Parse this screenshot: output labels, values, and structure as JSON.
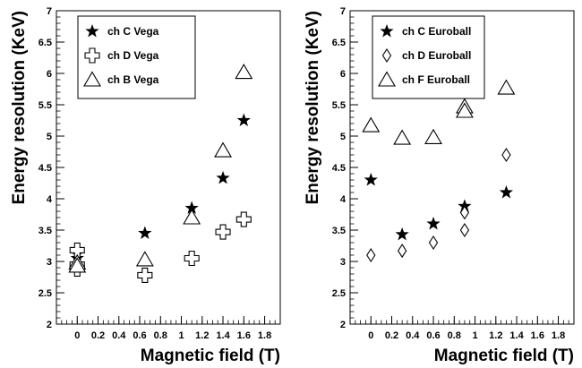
{
  "chart_data": [
    {
      "type": "scatter",
      "xlabel": "Magnetic field (T)",
      "ylabel": "Energy resolution (KeV)",
      "xlim": [
        -0.2,
        1.95
      ],
      "ylim": [
        2,
        7
      ],
      "xticks": [
        "0",
        "0.2",
        "0.4",
        "0.6",
        "0.8",
        "1",
        "1.2",
        "1.4",
        "1.6",
        "1.8"
      ],
      "yticks": [
        "2",
        "2.5",
        "3",
        "3.5",
        "4",
        "4.5",
        "5",
        "5.5",
        "6",
        "6.5",
        "7"
      ],
      "legend_position": "top-left",
      "series": [
        {
          "name": "ch C Vega",
          "marker": "star",
          "x": [
            0,
            0,
            0.65,
            1.1,
            1.4,
            1.6
          ],
          "y": [
            3.12,
            3.05,
            3.45,
            3.85,
            4.33,
            5.25
          ]
        },
        {
          "name": "ch D Vega",
          "marker": "cross",
          "x": [
            0,
            0,
            0,
            0.65,
            1.1,
            1.4,
            1.6
          ],
          "y": [
            3.18,
            2.95,
            2.88,
            2.78,
            3.05,
            3.47,
            3.67
          ]
        },
        {
          "name": "ch B Vega",
          "marker": "triangle",
          "x": [
            0,
            0,
            0.65,
            1.1,
            1.4,
            1.6
          ],
          "y": [
            2.98,
            2.93,
            3.03,
            3.7,
            4.77,
            6.02
          ]
        }
      ]
    },
    {
      "type": "scatter",
      "xlabel": "Magnetic field (T)",
      "ylabel": "Energy resolution (KeV)",
      "xlim": [
        -0.2,
        1.95
      ],
      "ylim": [
        2,
        7
      ],
      "xticks": [
        "0",
        "0.2",
        "0.4",
        "0.6",
        "0.8",
        "1",
        "1.2",
        "1.4",
        "1.6",
        "1.8"
      ],
      "yticks": [
        "2",
        "2.5",
        "3",
        "3.5",
        "4",
        "4.5",
        "5",
        "5.5",
        "6",
        "6.5",
        "7"
      ],
      "legend_position": "top-left",
      "series": [
        {
          "name": "ch C Euroball",
          "marker": "star",
          "x": [
            0,
            0.3,
            0.6,
            0.9,
            1.3
          ],
          "y": [
            4.3,
            3.43,
            3.6,
            3.88,
            4.1
          ]
        },
        {
          "name": "ch D Euroball",
          "marker": "diamond",
          "x": [
            0,
            0.3,
            0.6,
            0.9,
            0.9,
            1.3
          ],
          "y": [
            3.1,
            3.17,
            3.3,
            3.5,
            3.78,
            4.7
          ]
        },
        {
          "name": "ch F Euroball",
          "marker": "triangle",
          "x": [
            0,
            0.3,
            0.6,
            0.9,
            0.9,
            1.3
          ],
          "y": [
            5.17,
            4.97,
            4.98,
            5.47,
            5.4,
            5.77
          ]
        }
      ]
    }
  ]
}
